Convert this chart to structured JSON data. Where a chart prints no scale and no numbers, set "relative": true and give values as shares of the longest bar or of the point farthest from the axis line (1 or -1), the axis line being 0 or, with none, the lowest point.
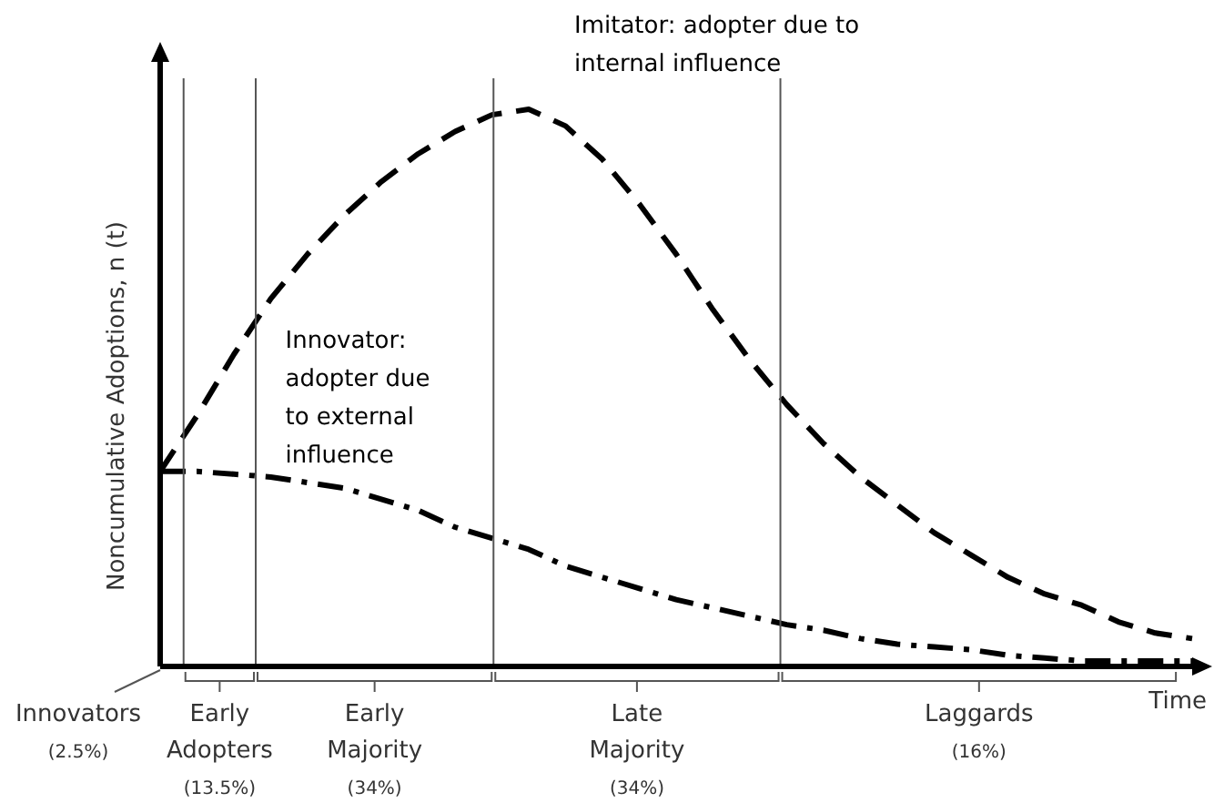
{
  "chart_data": {
    "type": "line",
    "relative": true,
    "xlabel": "Time",
    "ylabel": "Noncumulative Adoptions, n (t)",
    "legend": false,
    "tick_labels": false,
    "categories": [
      null,
      null,
      null,
      null,
      null,
      null,
      null,
      null,
      null,
      null,
      null,
      null,
      null,
      null,
      null,
      null,
      null,
      null,
      null,
      null,
      null,
      null,
      null,
      null,
      null,
      null,
      null,
      null,
      null
    ],
    "series": [
      {
        "name": "Imitator: adopter due to internal influence",
        "color": "#000000",
        "line_style": "dashed",
        "values": [
          0.35,
          0.45,
          0.56,
          0.66,
          0.74,
          0.81,
          0.87,
          0.92,
          0.96,
          0.99,
          1.0,
          0.97,
          0.91,
          0.83,
          0.74,
          0.64,
          0.55,
          0.47,
          0.4,
          0.34,
          0.29,
          0.24,
          0.2,
          0.16,
          0.13,
          0.11,
          0.08,
          0.06,
          0.05
        ]
      },
      {
        "name": "Innovator: adopter due to external influence",
        "color": "#000000",
        "line_style": "dashdot",
        "values": [
          0.35,
          0.35,
          0.345,
          0.34,
          0.33,
          0.32,
          0.3,
          0.28,
          0.25,
          0.23,
          0.21,
          0.18,
          0.16,
          0.14,
          0.12,
          0.105,
          0.09,
          0.075,
          0.065,
          0.05,
          0.04,
          0.035,
          0.03,
          0.02,
          0.015,
          0.01,
          0.01,
          0.01,
          0.01
        ]
      }
    ],
    "annotations": [
      "Innovators\n(2.5%)",
      "Early\nAdopters\n(13.5%)",
      "Early\nMajority\n(34%)",
      "Late\nMajority\n(34%)",
      "Laggards\n(16%)"
    ]
  }
}
